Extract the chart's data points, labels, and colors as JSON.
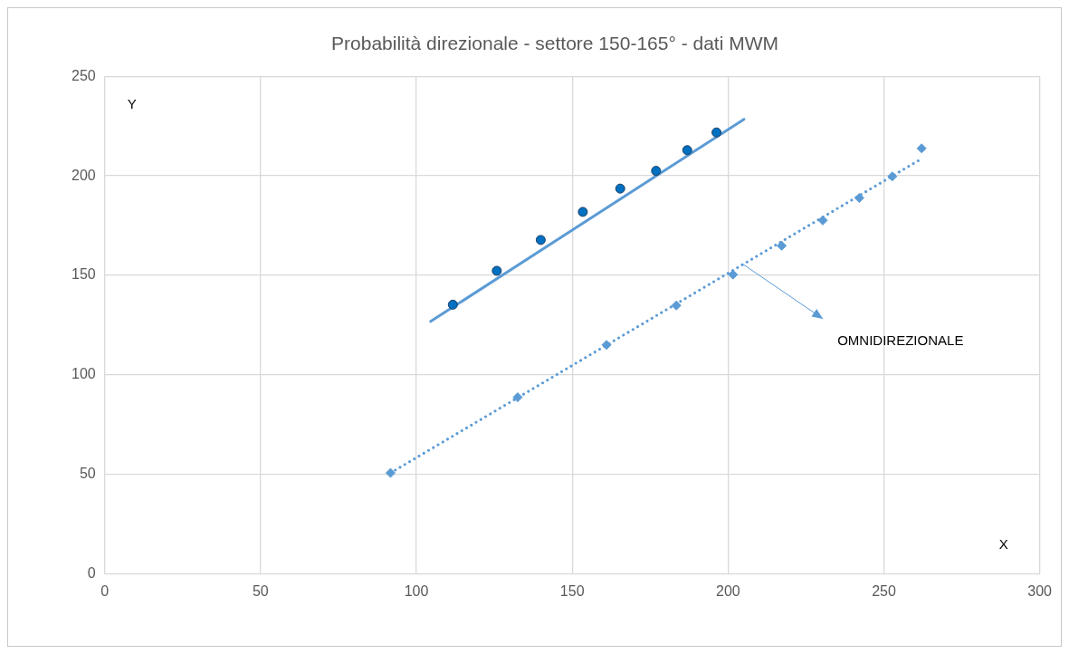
{
  "chart_data": {
    "type": "scatter",
    "title": "Probabilità direzionale - settore 150-165° - dati MWM",
    "xlabel": "X",
    "ylabel": "Y",
    "xlim": [
      0,
      300
    ],
    "xticks": [
      0,
      50,
      100,
      150,
      200,
      250,
      300
    ],
    "ylim": [
      0,
      250
    ],
    "yticks": [
      0,
      50,
      100,
      150,
      200,
      250
    ],
    "grid": true,
    "legend": false,
    "series": [
      {
        "marker": "circle",
        "color": "#0070c0",
        "x": [
          111.7,
          125.8,
          139.9,
          153.4,
          165.4,
          176.9,
          186.9,
          196.3
        ],
        "values": [
          135.3,
          152.3,
          167.8,
          181.9,
          193.6,
          202.5,
          212.9,
          221.8
        ]
      },
      {
        "type": "line",
        "line_style": "solid",
        "marker": "none",
        "color": "#5b9bd5",
        "x": [
          104.6,
          205.1
        ],
        "values": [
          126.9,
          228.4
        ]
      },
      {
        "marker": "diamond",
        "color": "#5b9bd5",
        "x": [
          91.7,
          132.5,
          161,
          183.4,
          201.6,
          217.2,
          230.4,
          242.1,
          252.7,
          262.1
        ],
        "values": [
          50.8,
          88.8,
          115.1,
          134.9,
          150.4,
          164.9,
          177.6,
          188.9,
          199.7,
          213.8
        ]
      },
      {
        "type": "line",
        "line_style": "dotted",
        "marker": "none",
        "color": "#5b9bd5",
        "x": [
          91.7,
          262.1
        ],
        "values": [
          50.8,
          208.6
        ]
      }
    ],
    "annotations": [
      "OMNIDIREZIONALE"
    ]
  }
}
